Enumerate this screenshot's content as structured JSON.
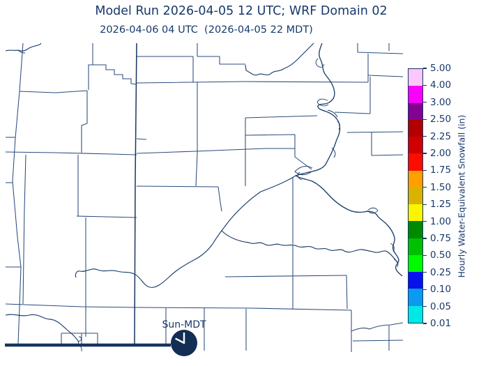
{
  "theme": {
    "text": "#17396B",
    "county": "#2A4B7C",
    "river": "#1C3E6B",
    "state": "#16355F",
    "clock": "#122E55",
    "bg": "#FFFFFF"
  },
  "header": {
    "title": "Model Run 2026-04-05 12 UTC; WRF Domain 02",
    "subtitle": "2026-04-06 04 UTC  (2026-04-05 22 MDT)"
  },
  "colorbar": {
    "label": "Hourly Water-Equivalent Snowfall (in)",
    "ticks": [
      "5.00",
      "4.00",
      "3.00",
      "2.50",
      "2.25",
      "2.00",
      "1.75",
      "1.50",
      "1.25",
      "1.00",
      "0.75",
      "0.50",
      "0.25",
      "0.10",
      "0.05",
      "0.01"
    ],
    "segments": [
      {
        "range": "0.01-0.05",
        "color": "#00E8E4"
      },
      {
        "range": "0.05-0.10",
        "color": "#0A9BF0"
      },
      {
        "range": "0.10-0.25",
        "color": "#0712EC"
      },
      {
        "range": "0.25-0.50",
        "color": "#00FA00"
      },
      {
        "range": "0.50-0.75",
        "color": "#00C100"
      },
      {
        "range": "0.75-1.00",
        "color": "#008A00"
      },
      {
        "range": "1.00-1.25",
        "color": "#FBF500"
      },
      {
        "range": "1.25-1.50",
        "color": "#D9B300"
      },
      {
        "range": "1.50-1.75",
        "color": "#FFA000"
      },
      {
        "range": "1.75-2.00",
        "color": "#FB0D00"
      },
      {
        "range": "2.00-2.25",
        "color": "#D00000"
      },
      {
        "range": "2.25-2.50",
        "color": "#B20000"
      },
      {
        "range": "2.50-3.00",
        "color": "#820291"
      },
      {
        "range": "3.00-4.00",
        "color": "#FB00FA"
      },
      {
        "range": "4.00-5.00",
        "color": "#FCC7FC"
      }
    ]
  },
  "clock": {
    "label": "Sun-MDT",
    "time_shown": "10:00"
  }
}
